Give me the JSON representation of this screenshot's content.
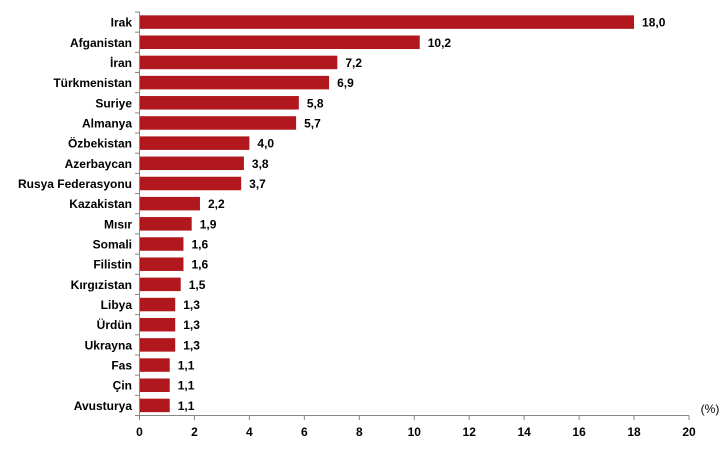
{
  "chart_data": {
    "type": "bar",
    "orientation": "horizontal",
    "title": "",
    "xlabel": "(%)",
    "ylabel": "",
    "xlim": [
      0,
      20
    ],
    "x_ticks": [
      "0",
      "2",
      "4",
      "6",
      "8",
      "10",
      "12",
      "14",
      "16",
      "18",
      "20"
    ],
    "grid": false,
    "legend": null,
    "bar_color": "#B0181E",
    "categories": [
      "Irak",
      "Afganistan",
      "İran",
      "Türkmenistan",
      "Suriye",
      "Almanya",
      "Özbekistan",
      "Azerbaycan",
      "Rusya Federasyonu",
      "Kazakistan",
      "Mısır",
      "Somali",
      "Filistin",
      "Kırgızistan",
      "Libya",
      "Ürdün",
      "Ukrayna",
      "Fas",
      "Çin",
      "Avusturya"
    ],
    "values": [
      18.0,
      10.2,
      7.2,
      6.9,
      5.8,
      5.7,
      4.0,
      3.8,
      3.7,
      2.2,
      1.9,
      1.6,
      1.6,
      1.5,
      1.3,
      1.3,
      1.3,
      1.1,
      1.1,
      1.1
    ],
    "value_labels": [
      "18,0",
      "10,2",
      "7,2",
      "6,9",
      "5,8",
      "5,7",
      "4,0",
      "3,8",
      "3,7",
      "2,2",
      "1,9",
      "1,6",
      "1,6",
      "1,5",
      "1,3",
      "1,3",
      "1,3",
      "1,1",
      "1,1",
      "1,1"
    ]
  }
}
